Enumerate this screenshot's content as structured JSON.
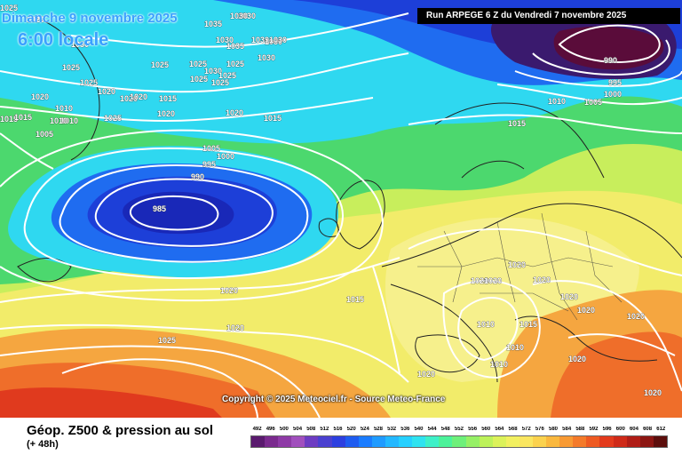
{
  "header": {
    "date_text": "Dimanche 9 novembre 2025",
    "time_text": "6:00 locale",
    "run_text": "Run ARPEGE 6 Z du Vendredi 7 novembre 2025"
  },
  "copyright": "Copyright © 2025 Meteociel.fr - Source Meteo-France",
  "legend": {
    "title": "Géop. Z500 & pression au sol",
    "subtitle": "(+ 48h)",
    "ticks": [
      "492",
      "496",
      "500",
      "504",
      "508",
      "512",
      "516",
      "520",
      "524",
      "528",
      "532",
      "536",
      "540",
      "544",
      "548",
      "552",
      "556",
      "560",
      "564",
      "568",
      "572",
      "576",
      "580",
      "584",
      "588",
      "592",
      "596",
      "600",
      "604",
      "608",
      "612"
    ],
    "colors": [
      "#5a1a6e",
      "#7a2a8e",
      "#8e3aa6",
      "#a14fbd",
      "#6d3cc2",
      "#4a40d0",
      "#2c3fe0",
      "#1e5cf0",
      "#1a7cff",
      "#1f9bff",
      "#23b8ff",
      "#26d0ff",
      "#2fe3f0",
      "#3ef0c8",
      "#4cf29a",
      "#6ef07a",
      "#96f066",
      "#bdf25a",
      "#dcf25a",
      "#f2f060",
      "#fae660",
      "#fbd24e",
      "#fab83e",
      "#f89a33",
      "#f47a2a",
      "#ee5a22",
      "#e33a1c",
      "#cf2a18",
      "#b01d16",
      "#8c1612",
      "#5c0e0c"
    ]
  },
  "map": {
    "colors": {
      "yellow_green": "#c8ee5c",
      "green": "#4cd86e",
      "cyan": "#2fd8f0",
      "blue": "#1f6cf0",
      "deep_blue": "#1d3fd8",
      "low_core": "#1928b8",
      "purple": "#3a1a6e",
      "maroon": "#5a0c3a",
      "yellow": "#f2ec6a",
      "light_yellow": "#f6f08c",
      "orange": "#f5a640",
      "dark_orange": "#ef6e2a",
      "red": "#e03a1e",
      "isobar": "#ffffff",
      "coast": "#222222"
    },
    "isobar_labels": [
      "1025",
      "1030",
      "1035",
      "1030",
      "1030",
      "1035",
      "1030",
      "1030",
      "1030",
      "1030",
      "1025",
      "1025",
      "1025",
      "1020",
      "1025",
      "1025",
      "1030",
      "1025",
      "1020",
      "1020",
      "1015",
      "1010",
      "1025",
      "1025",
      "1020",
      "1020",
      "1015",
      "1015",
      "1010",
      "1005",
      "1000",
      "995",
      "990",
      "985",
      "1005",
      "1010",
      "1015",
      "1020",
      "1025",
      "990",
      "995",
      "1000",
      "1010",
      "1005",
      "1015",
      "1020",
      "1020",
      "1020",
      "1020",
      "1020",
      "1020",
      "1020",
      "1010",
      "1015",
      "1010",
      "1020",
      "1010",
      "1020",
      "1020",
      "1020",
      "1015",
      "1020",
      "1020",
      "1030",
      "1025"
    ]
  }
}
